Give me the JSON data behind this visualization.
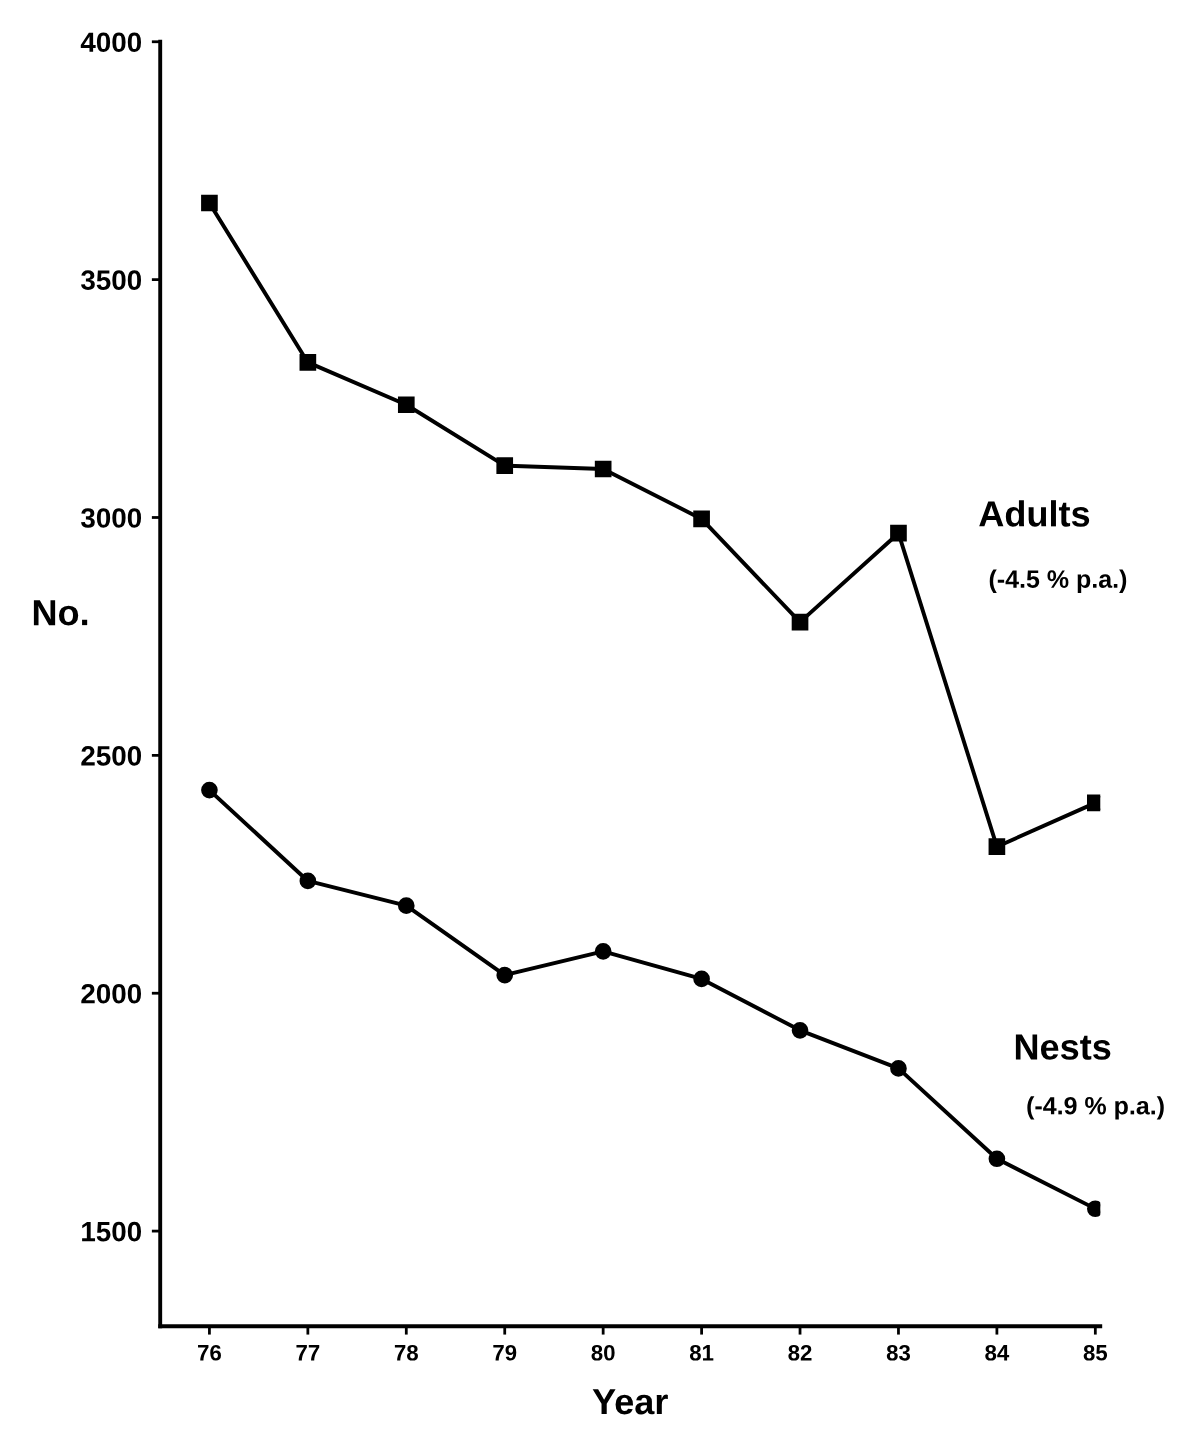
{
  "chart_data": {
    "type": "line",
    "xlabel": "Year",
    "ylabel": "No.",
    "x": [
      76,
      77,
      78,
      79,
      80,
      81,
      82,
      83,
      84,
      85
    ],
    "series": [
      {
        "name": "Adults",
        "color": "#000000",
        "marker": "square",
        "values": [
          3661,
          3326,
          3237,
          3109,
          3102,
          2997,
          2780,
          2967,
          2308,
          2400
        ]
      },
      {
        "name": "Nests",
        "color": "#000000",
        "marker": "circle",
        "values": [
          2427,
          2236,
          2184,
          2038,
          2088,
          2030,
          1922,
          1842,
          1652,
          1547
        ]
      }
    ],
    "annotations": [
      "(-4.5 % p.a.)",
      "(-4.9 % p.a.)"
    ],
    "xlim": [
      75.5,
      85.05
    ],
    "ylim": [
      1300,
      4000
    ],
    "xticks": [
      76,
      77,
      78,
      79,
      80,
      81,
      82,
      83,
      84,
      85
    ],
    "yticks": [
      1500,
      2000,
      2500,
      3000,
      3500,
      4000
    ],
    "grid": false,
    "legend": false,
    "line_style": "solid"
  }
}
